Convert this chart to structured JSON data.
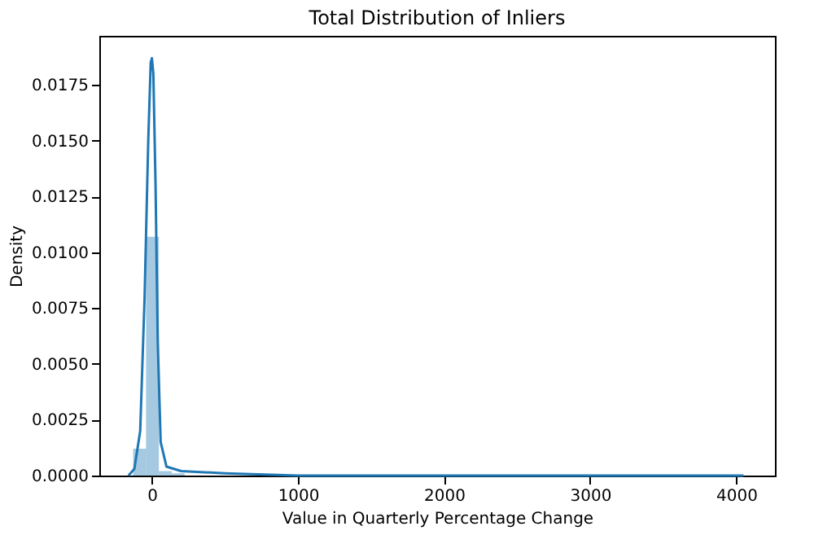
{
  "chart_data": {
    "type": "histogram",
    "title": "Total Distribution of Inliers",
    "xlabel": "Value in Quarterly Percentage Change",
    "ylabel": "Density",
    "xlim": [
      -360,
      4265
    ],
    "xticks": [
      0,
      1000,
      2000,
      3000,
      4000
    ],
    "ylim": [
      0,
      0.0197
    ],
    "yticks": [
      {
        "value": 0,
        "label": "0.0000"
      },
      {
        "value": 0.0025,
        "label": "0.0025"
      },
      {
        "value": 0.005,
        "label": "0.0050"
      },
      {
        "value": 0.0075,
        "label": "0.0075"
      },
      {
        "value": 0.01,
        "label": "0.0100"
      },
      {
        "value": 0.0125,
        "label": "0.0125"
      },
      {
        "value": 0.015,
        "label": "0.0150"
      },
      {
        "value": 0.0175,
        "label": "0.0175"
      }
    ],
    "grid": false,
    "series": [
      {
        "color": "#1f77b4",
        "bins": [
          -128,
          -40,
          48,
          136,
          224,
          312,
          400,
          488,
          576,
          664,
          752,
          840,
          928,
          1016,
          1104,
          1192,
          1280,
          1368,
          1456,
          1544,
          1632,
          1720,
          1808,
          1896,
          1984,
          2072,
          2160,
          2248,
          2336,
          2424,
          2512,
          2600,
          2688,
          2776,
          2864,
          2952,
          3040,
          3128,
          3216,
          3304,
          3392,
          3480,
          3568,
          3656,
          3744,
          3832,
          3920,
          4008,
          4096
        ],
        "values": [
          0.0012,
          0.0107,
          0.0002,
          0.0001,
          0,
          0,
          0,
          0,
          0,
          0,
          0,
          0,
          0,
          0,
          0,
          0,
          0,
          0,
          0,
          0,
          0,
          0,
          0,
          0,
          0,
          0,
          0,
          0,
          0,
          0,
          0,
          0,
          0,
          0,
          0,
          0,
          0,
          0,
          0,
          0,
          0,
          0,
          0,
          0,
          0,
          0,
          0,
          0
        ]
      },
      {
        "type": "line",
        "color": "#1f77b4",
        "x": [
          -160,
          -120,
          -80,
          -50,
          -25,
          -8,
          0,
          10,
          25,
          40,
          60,
          100,
          200,
          500,
          1000,
          2000,
          3000,
          4050
        ],
        "values": [
          0,
          0.0003,
          0.002,
          0.008,
          0.015,
          0.0185,
          0.0187,
          0.018,
          0.013,
          0.006,
          0.0015,
          0.0004,
          0.0002,
          0.0001,
          0,
          0,
          0,
          0
        ]
      }
    ]
  }
}
